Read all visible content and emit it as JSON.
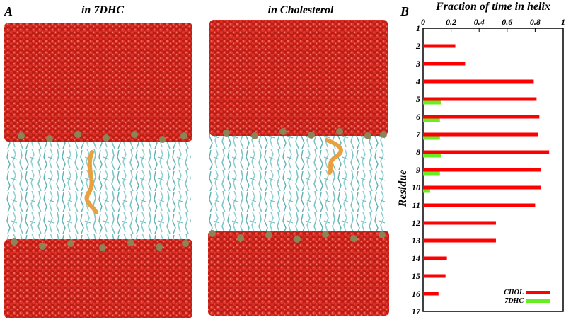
{
  "panel_a": {
    "letter": "A",
    "left_title": "in 7DHC",
    "right_title": "in Cholesterol"
  },
  "panel_b": {
    "letter": "B"
  },
  "colors": {
    "water": "#d42a22",
    "water_dark": "#a8170f",
    "headgroup": "#8c8456",
    "lipid": "#7cc4c4",
    "peptide": "#e8a040",
    "chol_bar": "#ff0000",
    "dhc_bar": "#66ee22"
  },
  "chart_data": {
    "type": "bar",
    "orientation": "horizontal",
    "title": "Fraction of time in helix",
    "xlabel": "Fraction of time in helix",
    "ylabel": "Residue",
    "xlim": [
      0,
      1
    ],
    "ylim": [
      1,
      17
    ],
    "x_ticks": [
      "0",
      "0.2",
      "0.4",
      "0.6",
      "0.8",
      "1"
    ],
    "x_tick_values": [
      0,
      0.2,
      0.4,
      0.6,
      0.8,
      1
    ],
    "categories": [
      "1",
      "2",
      "3",
      "4",
      "5",
      "6",
      "7",
      "8",
      "9",
      "10",
      "11",
      "12",
      "13",
      "14",
      "15",
      "16",
      "17"
    ],
    "series": [
      {
        "name": "CHOL",
        "color": "#ff0000",
        "values": [
          0,
          0.23,
          0.3,
          0.79,
          0.81,
          0.83,
          0.82,
          0.9,
          0.84,
          0.84,
          0.8,
          0.52,
          0.52,
          0.17,
          0.16,
          0.11,
          0
        ]
      },
      {
        "name": "7DHC",
        "color": "#66ee22",
        "values": [
          0,
          0,
          0,
          0,
          0.13,
          0.12,
          0.12,
          0.13,
          0.12,
          0.05,
          0,
          0,
          0,
          0,
          0,
          0,
          0
        ]
      }
    ],
    "legend": {
      "placement": "bottom-right",
      "entries": [
        "CHOL",
        "7DHC"
      ]
    }
  }
}
